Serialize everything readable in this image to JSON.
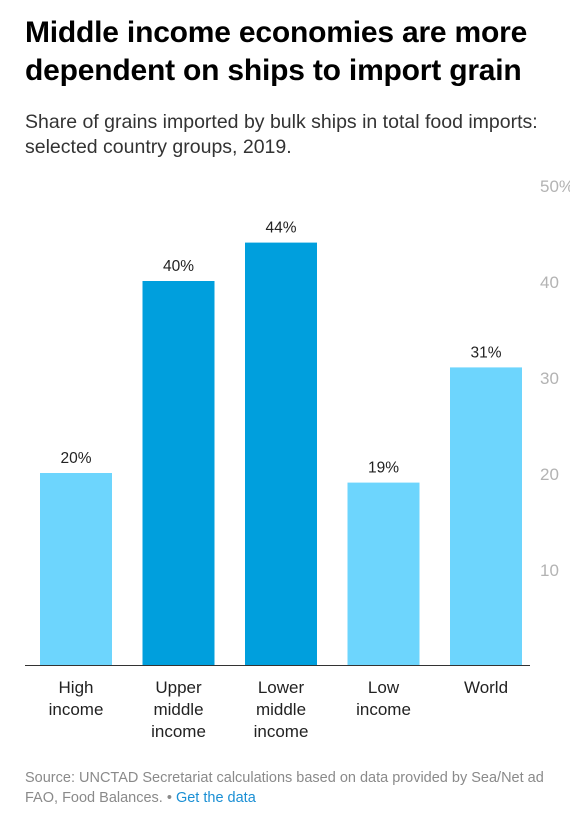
{
  "title": "Middle income economies are more dependent on ships to import grain",
  "subtitle": "Share of grains imported by bulk ships in total food imports: selected country groups, 2019.",
  "footer": {
    "source": "Source: UNCTAD Secretariat calculations based on data provided by Sea/Net ad FAO, Food Balances.",
    "separator": "•",
    "link_label": "Get the data"
  },
  "chart_data": {
    "type": "bar",
    "categories": [
      [
        "High",
        "income"
      ],
      [
        "Upper",
        "middle",
        "income"
      ],
      [
        "Lower",
        "middle",
        "income"
      ],
      [
        "Low",
        "income"
      ],
      [
        "World"
      ]
    ],
    "values": [
      20,
      40,
      44,
      19,
      31
    ],
    "data_labels": [
      "20%",
      "40%",
      "44%",
      "19%",
      "31%"
    ],
    "colors": [
      "#6dd5fd",
      "#009fdd",
      "#009fdd",
      "#6dd5fd",
      "#6dd5fd"
    ],
    "ylim": [
      0,
      50
    ],
    "yticks": [
      "10",
      "20",
      "30",
      "40",
      "50%"
    ],
    "ytick_values": [
      10,
      20,
      30,
      40,
      50
    ],
    "axis_side": "right",
    "grid": false
  }
}
